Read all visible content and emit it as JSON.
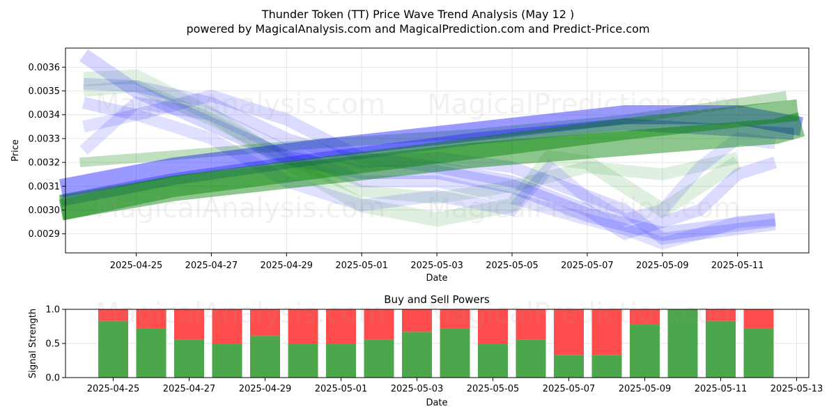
{
  "figure": {
    "title_line1": "Thunder Token (TT) Price Wave Trend Analysis (May 12 )",
    "title_line2": "powered by MagicalAnalysis.com and MagicalPrediction.com and Predict-Price.com",
    "watermarks": [
      "MagicalAnalysis.com",
      "MagicalPrediction.com"
    ]
  },
  "colors": {
    "green": "#008000",
    "blue": "#0000ff",
    "buy": "#4ca64c",
    "sell": "#ff4d4d",
    "grid": "#e6e6e6"
  },
  "chart_data": [
    {
      "type": "line",
      "title": "",
      "xlabel": "Date",
      "ylabel": "Price",
      "x_ticks": [
        "2025-04-25",
        "2025-04-27",
        "2025-04-29",
        "2025-05-01",
        "2025-05-03",
        "2025-05-05",
        "2025-05-07",
        "2025-05-09",
        "2025-05-11"
      ],
      "y_ticks": [
        "0.0029",
        "0.0030",
        "0.0031",
        "0.0032",
        "0.0033",
        "0.0034",
        "0.0035",
        "0.0036"
      ],
      "ylim": [
        0.00282,
        0.00368
      ],
      "grid": true,
      "bands": [
        {
          "color": "green",
          "opacity": 0.45,
          "width": 0.000105,
          "points": [
            [
              "2025-04-23",
              0.00301
            ],
            [
              "2025-04-26",
              0.00309
            ],
            [
              "2025-04-30",
              0.00316
            ],
            [
              "2025-05-04",
              0.00323
            ],
            [
              "2025-05-08",
              0.00328
            ],
            [
              "2025-05-12",
              0.00333
            ],
            [
              "2025-05-12.7",
              0.00336
            ]
          ]
        },
        {
          "color": "green",
          "opacity": 0.45,
          "width": 9e-05,
          "points": [
            [
              "2025-04-23",
              0.003
            ],
            [
              "2025-04-26",
              0.0031
            ],
            [
              "2025-04-30",
              0.00318
            ],
            [
              "2025-05-04",
              0.00326
            ],
            [
              "2025-05-08",
              0.00334
            ],
            [
              "2025-05-12.6",
              0.00342
            ]
          ]
        },
        {
          "color": "green",
          "opacity": 0.25,
          "width": 4e-05,
          "points": [
            [
              "2025-04-23.5",
              0.0032
            ],
            [
              "2025-04-26",
              0.00323
            ],
            [
              "2025-04-30",
              0.00328
            ],
            [
              "2025-05-04",
              0.00332
            ],
            [
              "2025-05-08",
              0.00338
            ],
            [
              "2025-05-12.3",
              0.00348
            ]
          ]
        },
        {
          "color": "blue",
          "opacity": 0.4,
          "width": 8e-05,
          "points": [
            [
              "2025-04-23",
              0.00309
            ],
            [
              "2025-04-26",
              0.00318
            ],
            [
              "2025-04-30",
              0.00326
            ],
            [
              "2025-05-04",
              0.00333
            ],
            [
              "2025-05-08",
              0.0034
            ],
            [
              "2025-05-11",
              0.0034
            ],
            [
              "2025-05-12.7",
              0.00335
            ]
          ]
        },
        {
          "color": "blue",
          "opacity": 0.3,
          "width": 5e-05,
          "points": [
            [
              "2025-04-23",
              0.00304
            ],
            [
              "2025-04-26",
              0.00313
            ],
            [
              "2025-04-30",
              0.00322
            ],
            [
              "2025-05-04",
              0.0033
            ],
            [
              "2025-05-08",
              0.00336
            ],
            [
              "2025-05-12.5",
              0.00332
            ]
          ]
        },
        {
          "color": "green",
          "opacity": 0.12,
          "width": 6e-05,
          "points": [
            [
              "2025-04-23.6",
              0.00355
            ],
            [
              "2025-04-25",
              0.00356
            ],
            [
              "2025-04-27",
              0.0034
            ],
            [
              "2025-04-29",
              0.0032
            ],
            [
              "2025-05-01",
              0.00302
            ],
            [
              "2025-05-03",
              0.00296
            ],
            [
              "2025-05-05",
              0.00302
            ],
            [
              "2025-05-06",
              0.00322
            ],
            [
              "2025-05-07",
              0.0032
            ],
            [
              "2025-05-08",
              0.0031
            ],
            [
              "2025-05-09",
              0.003
            ],
            [
              "2025-05-10",
              0.0031
            ],
            [
              "2025-05-11",
              0.0032
            ]
          ]
        },
        {
          "color": "green",
          "opacity": 0.12,
          "width": 5e-05,
          "points": [
            [
              "2025-04-23.6",
              0.0035
            ],
            [
              "2025-04-25",
              0.00352
            ],
            [
              "2025-04-27",
              0.00338
            ],
            [
              "2025-04-29",
              0.00322
            ],
            [
              "2025-05-01",
              0.00308
            ],
            [
              "2025-05-03",
              0.00305
            ],
            [
              "2025-05-05",
              0.0031
            ],
            [
              "2025-05-07",
              0.00318
            ],
            [
              "2025-05-09",
              0.00315
            ],
            [
              "2025-05-11",
              0.00322
            ]
          ]
        },
        {
          "color": "blue",
          "opacity": 0.16,
          "width": 6e-05,
          "points": [
            [
              "2025-04-23.6",
              0.00365
            ],
            [
              "2025-04-25",
              0.0035
            ],
            [
              "2025-04-27",
              0.00336
            ],
            [
              "2025-04-29",
              0.00322
            ],
            [
              "2025-05-01",
              0.00316
            ],
            [
              "2025-05-03",
              0.00316
            ],
            [
              "2025-05-05",
              0.0031
            ],
            [
              "2025-05-07",
              0.00298
            ],
            [
              "2025-05-08",
              0.00294
            ],
            [
              "2025-05-09",
              0.0029
            ],
            [
              "2025-05-10",
              0.00292
            ],
            [
              "2025-05-11",
              0.00294
            ],
            [
              "2025-05-12",
              0.00296
            ]
          ]
        },
        {
          "color": "blue",
          "opacity": 0.14,
          "width": 5e-05,
          "points": [
            [
              "2025-04-23.6",
              0.00353
            ],
            [
              "2025-04-25",
              0.00352
            ],
            [
              "2025-04-27",
              0.00345
            ],
            [
              "2025-04-29",
              0.0033
            ],
            [
              "2025-05-01",
              0.0032
            ],
            [
              "2025-05-03",
              0.00322
            ],
            [
              "2025-05-05",
              0.00318
            ],
            [
              "2025-05-07",
              0.00306
            ],
            [
              "2025-05-08",
              0.003
            ],
            [
              "2025-05-09",
              0.00288
            ],
            [
              "2025-05-10",
              0.0029
            ],
            [
              "2025-05-11",
              0.00292
            ],
            [
              "2025-05-12",
              0.00294
            ]
          ]
        },
        {
          "color": "blue",
          "opacity": 0.14,
          "width": 5e-05,
          "points": [
            [
              "2025-04-23.6",
              0.00345
            ],
            [
              "2025-04-25",
              0.0034
            ],
            [
              "2025-04-27",
              0.00348
            ],
            [
              "2025-04-29",
              0.00338
            ],
            [
              "2025-05-01",
              0.00322
            ],
            [
              "2025-05-03",
              0.00318
            ],
            [
              "2025-05-05",
              0.00312
            ],
            [
              "2025-05-07",
              0.003
            ],
            [
              "2025-05-08",
              0.0029
            ],
            [
              "2025-05-10",
              0.003
            ],
            [
              "2025-05-11",
              0.00315
            ],
            [
              "2025-05-12",
              0.0032
            ]
          ]
        },
        {
          "color": "blue",
          "opacity": 0.12,
          "width": 5e-05,
          "points": [
            [
              "2025-04-23.6",
              0.00335
            ],
            [
              "2025-04-25",
              0.0034
            ],
            [
              "2025-04-27",
              0.0033
            ],
            [
              "2025-04-29",
              0.00312
            ],
            [
              "2025-05-01",
              0.00302
            ],
            [
              "2025-05-03",
              0.00306
            ],
            [
              "2025-05-05",
              0.003
            ],
            [
              "2025-05-06",
              0.00318
            ],
            [
              "2025-05-07",
              0.00305
            ],
            [
              "2025-05-08",
              0.00296
            ],
            [
              "2025-05-09",
              0.003
            ],
            [
              "2025-05-10",
              0.00318
            ],
            [
              "2025-05-11",
              0.0033
            ],
            [
              "2025-05-12",
              0.00328
            ]
          ]
        },
        {
          "color": "blue",
          "opacity": 0.12,
          "width": 5e-05,
          "points": [
            [
              "2025-04-23.6",
              0.00325
            ],
            [
              "2025-04-25",
              0.00345
            ],
            [
              "2025-04-27",
              0.0034
            ],
            [
              "2025-04-29",
              0.00325
            ],
            [
              "2025-05-01",
              0.00312
            ],
            [
              "2025-05-03",
              0.00312
            ],
            [
              "2025-05-05",
              0.00305
            ],
            [
              "2025-05-07",
              0.00296
            ],
            [
              "2025-05-08",
              0.00292
            ],
            [
              "2025-05-09",
              0.00286
            ],
            [
              "2025-05-10",
              0.0029
            ],
            [
              "2025-05-11",
              0.00295
            ],
            [
              "2025-05-12",
              0.00296
            ]
          ]
        }
      ]
    },
    {
      "type": "bar",
      "title": "Buy and Sell Powers",
      "xlabel": "Date",
      "ylabel": "Signal Strength",
      "ylim": [
        0,
        1
      ],
      "y_ticks": [
        "0.0",
        "0.5",
        "1.0"
      ],
      "x_ticks": [
        "2025-04-25",
        "2025-04-27",
        "2025-04-29",
        "2025-05-01",
        "2025-05-03",
        "2025-05-05",
        "2025-05-07",
        "2025-05-09",
        "2025-05-11",
        "2025-05-13"
      ],
      "categories": [
        "2025-04-25",
        "2025-04-26",
        "2025-04-27",
        "2025-04-28",
        "2025-04-29",
        "2025-04-30",
        "2025-05-01",
        "2025-05-02",
        "2025-05-03",
        "2025-05-04",
        "2025-05-05",
        "2025-05-06",
        "2025-05-07",
        "2025-05-08",
        "2025-05-09",
        "2025-05-10",
        "2025-05-11",
        "2025-05-12"
      ],
      "series": [
        {
          "values": [
            0.83,
            0.72,
            0.56,
            0.5,
            0.61,
            0.5,
            0.5,
            0.56,
            0.67,
            0.72,
            0.5,
            0.56,
            0.33,
            0.33,
            0.78,
            1.0,
            0.83,
            0.72
          ]
        },
        {
          "values": [
            0.17,
            0.28,
            0.44,
            0.5,
            0.39,
            0.5,
            0.5,
            0.44,
            0.33,
            0.28,
            0.5,
            0.44,
            0.67,
            0.67,
            0.22,
            0.0,
            0.17,
            0.28
          ]
        }
      ]
    }
  ]
}
